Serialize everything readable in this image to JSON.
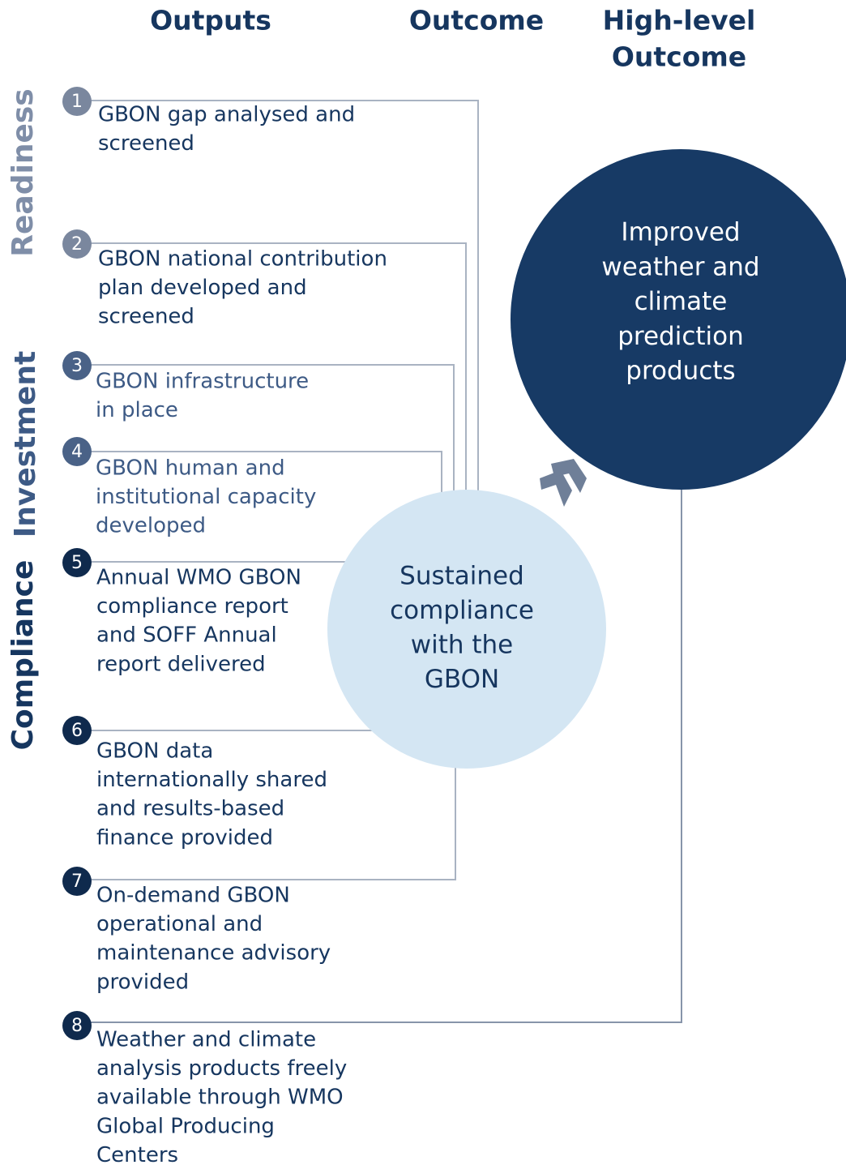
{
  "header": {
    "outputs": "Outputs",
    "outcome": "Outcome",
    "high_level": [
      "High-level",
      "Outcome"
    ]
  },
  "phases": [
    "Readiness",
    "Investment",
    "Compliance"
  ],
  "outputs": [
    {
      "number": "1",
      "lines": [
        "GBON gap analysed and",
        "screened"
      ]
    },
    {
      "number": "2",
      "lines": [
        "GBON national contribution",
        "plan developed and",
        "screened"
      ]
    },
    {
      "number": "3",
      "lines": [
        "GBON infrastructure",
        "in place"
      ]
    },
    {
      "number": "4",
      "lines": [
        "GBON human and",
        "institutional capacity",
        "developed"
      ]
    },
    {
      "number": "5",
      "lines": [
        "Annual WMO GBON",
        "compliance report",
        "and SOFF Annual",
        "report delivered"
      ]
    },
    {
      "number": "6",
      "lines": [
        "GBON data",
        "internationally shared",
        "and results-based",
        "finance provided"
      ]
    },
    {
      "number": "7",
      "lines": [
        "On-demand GBON",
        "operational and",
        "maintenance advisory",
        "provided"
      ]
    },
    {
      "number": "8",
      "lines": [
        "Weather and climate",
        "analysis products freely",
        "available through WMO",
        "Global Producing",
        "Centers"
      ]
    }
  ],
  "outcome": [
    "Sustained",
    "compliance",
    "with the",
    "GBON"
  ],
  "high_level_outcome": [
    "Improved",
    "weather and",
    "climate",
    "prediction",
    "products"
  ]
}
